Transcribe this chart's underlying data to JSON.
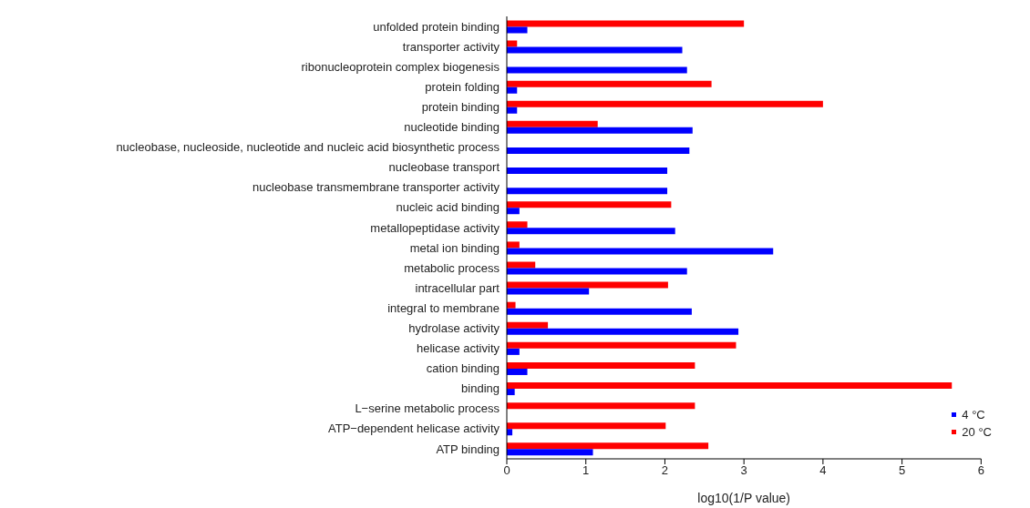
{
  "chart_data": {
    "type": "bar",
    "orientation": "horizontal",
    "xlabel": "log10(1/P value)",
    "categories": [
      "unfolded protein binding",
      "transporter activity",
      "ribonucleoprotein complex biogenesis",
      "protein folding",
      "protein binding",
      "nucleotide binding",
      "nucleobase, nucleoside, nucleotide and nucleic acid biosynthetic process",
      "nucleobase transport",
      "nucleobase transmembrane transporter activity",
      "nucleic acid binding",
      "metallopeptidase activity",
      "metal ion binding",
      "metabolic process",
      "intracellular part",
      "integral to membrane",
      "hydrolase activity",
      "helicase activity",
      "cation binding",
      "binding",
      "L−serine metabolic process",
      "ATP−dependent helicase activity",
      "ATP binding"
    ],
    "series": [
      {
        "name": "4 °C",
        "color": "#0000ff",
        "values": [
          0.26,
          2.22,
          2.28,
          0.13,
          0.13,
          2.35,
          2.31,
          2.03,
          2.03,
          0.16,
          2.13,
          3.37,
          2.28,
          1.04,
          2.34,
          2.93,
          0.16,
          0.26,
          0.1,
          0,
          0.07,
          1.09
        ]
      },
      {
        "name": "20 °C",
        "color": "#ff0000",
        "values": [
          3.0,
          0.13,
          0,
          2.59,
          4.0,
          1.15,
          0,
          0,
          0,
          2.08,
          0.26,
          0.16,
          0.36,
          2.04,
          0.11,
          0.52,
          2.9,
          2.38,
          5.63,
          2.38,
          2.01,
          2.55
        ]
      }
    ],
    "xlim": [
      0,
      6
    ],
    "xticks": [
      0,
      1,
      2,
      3,
      4,
      5,
      6
    ],
    "grid": false,
    "legend": "bottom right"
  }
}
